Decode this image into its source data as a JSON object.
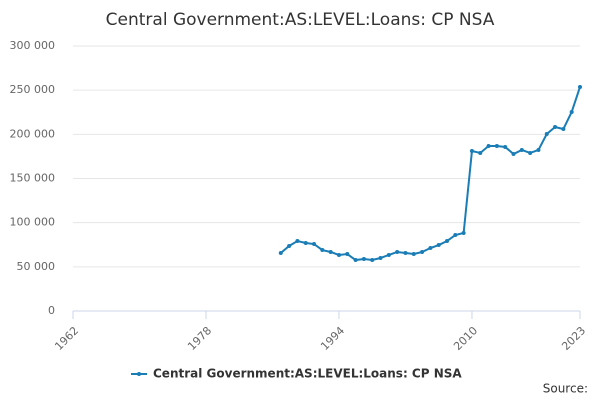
{
  "chart_data": {
    "type": "line",
    "title": "Central Government:AS:LEVEL:Loans: CP NSA",
    "source": "Source:",
    "x": [
      1987,
      1988,
      1989,
      1990,
      1991,
      1992,
      1993,
      1994,
      1995,
      1996,
      1997,
      1998,
      1999,
      2000,
      2001,
      2002,
      2003,
      2004,
      2005,
      2006,
      2007,
      2008,
      2009,
      2010,
      2011,
      2012,
      2013,
      2014,
      2015,
      2016,
      2017,
      2018,
      2019,
      2020,
      2021,
      2022,
      2023
    ],
    "series": [
      {
        "name": "Central Government:AS:LEVEL:Loans: CP NSA",
        "color": "#1a7db6",
        "values": [
          65700,
          73600,
          79200,
          77000,
          75800,
          69000,
          66800,
          63400,
          64500,
          57700,
          58900,
          57700,
          60000,
          63400,
          66800,
          65700,
          64500,
          66800,
          71300,
          74700,
          79200,
          86000,
          88300,
          181100,
          178900,
          186800,
          186800,
          185700,
          177700,
          182300,
          178900,
          182300,
          200400,
          208300,
          206000,
          225300,
          253600
        ]
      }
    ],
    "xlim": [
      1962,
      2023
    ],
    "xticks": [
      1962,
      1978,
      1994,
      2010,
      2023
    ],
    "ylim": [
      0,
      300000
    ],
    "yticks": [
      0,
      {
        "value": 50000,
        "label": "50 000"
      },
      {
        "value": 100000,
        "label": "100 000"
      },
      {
        "value": 150000,
        "label": "150 000"
      },
      {
        "value": 200000,
        "label": "200 000"
      },
      {
        "value": 250000,
        "label": "250 000"
      },
      {
        "value": 300000,
        "label": "300 000"
      }
    ],
    "grid": true
  }
}
